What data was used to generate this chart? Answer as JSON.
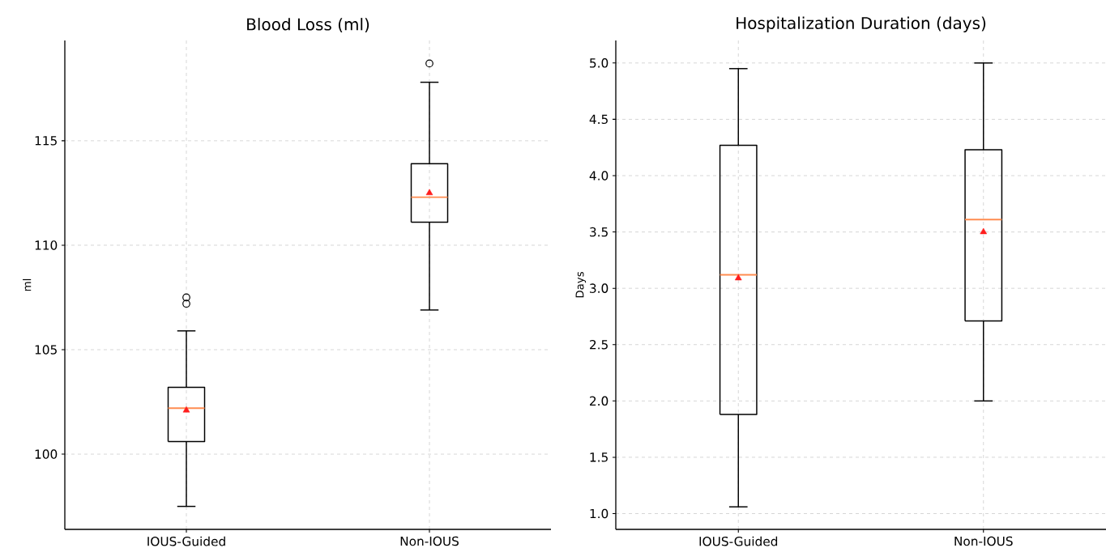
{
  "chart_data": [
    {
      "type": "box",
      "title": "Blood Loss (ml)",
      "ylabel": "ml",
      "categories": [
        "IOUS-Guided",
        "Non-IOUS"
      ],
      "boxes": [
        {
          "low": 97.5,
          "q1": 100.6,
          "median": 102.2,
          "q3": 103.2,
          "high": 105.9,
          "mean": 102.1,
          "outliers": [
            107.5,
            107.2
          ]
        },
        {
          "low": 106.9,
          "q1": 111.1,
          "median": 112.3,
          "q3": 113.9,
          "high": 117.8,
          "mean": 112.5,
          "outliers": [
            118.7
          ]
        }
      ],
      "ylim": [
        96.4,
        119.8
      ],
      "yticks": [
        100,
        105,
        110,
        115
      ],
      "grid": true
    },
    {
      "type": "box",
      "title": "Hospitalization Duration (days)",
      "ylabel": "Days",
      "categories": [
        "IOUS-Guided",
        "Non-IOUS"
      ],
      "boxes": [
        {
          "low": 1.06,
          "q1": 1.88,
          "median": 3.12,
          "q3": 4.27,
          "high": 4.95,
          "mean": 3.09
        },
        {
          "low": 2.0,
          "q1": 2.71,
          "median": 3.61,
          "q3": 4.23,
          "high": 5.0,
          "mean": 3.5
        }
      ],
      "ylim": [
        0.86,
        5.2
      ],
      "yticks": [
        {
          "value": 1,
          "label": "1.0"
        },
        1.5,
        {
          "value": 2,
          "label": "2.0"
        },
        2.5,
        {
          "value": 3,
          "label": "3.0"
        },
        3.5,
        {
          "value": 4,
          "label": "4.0"
        },
        4.5,
        {
          "value": 5,
          "label": "5.0"
        }
      ],
      "grid": true
    }
  ]
}
